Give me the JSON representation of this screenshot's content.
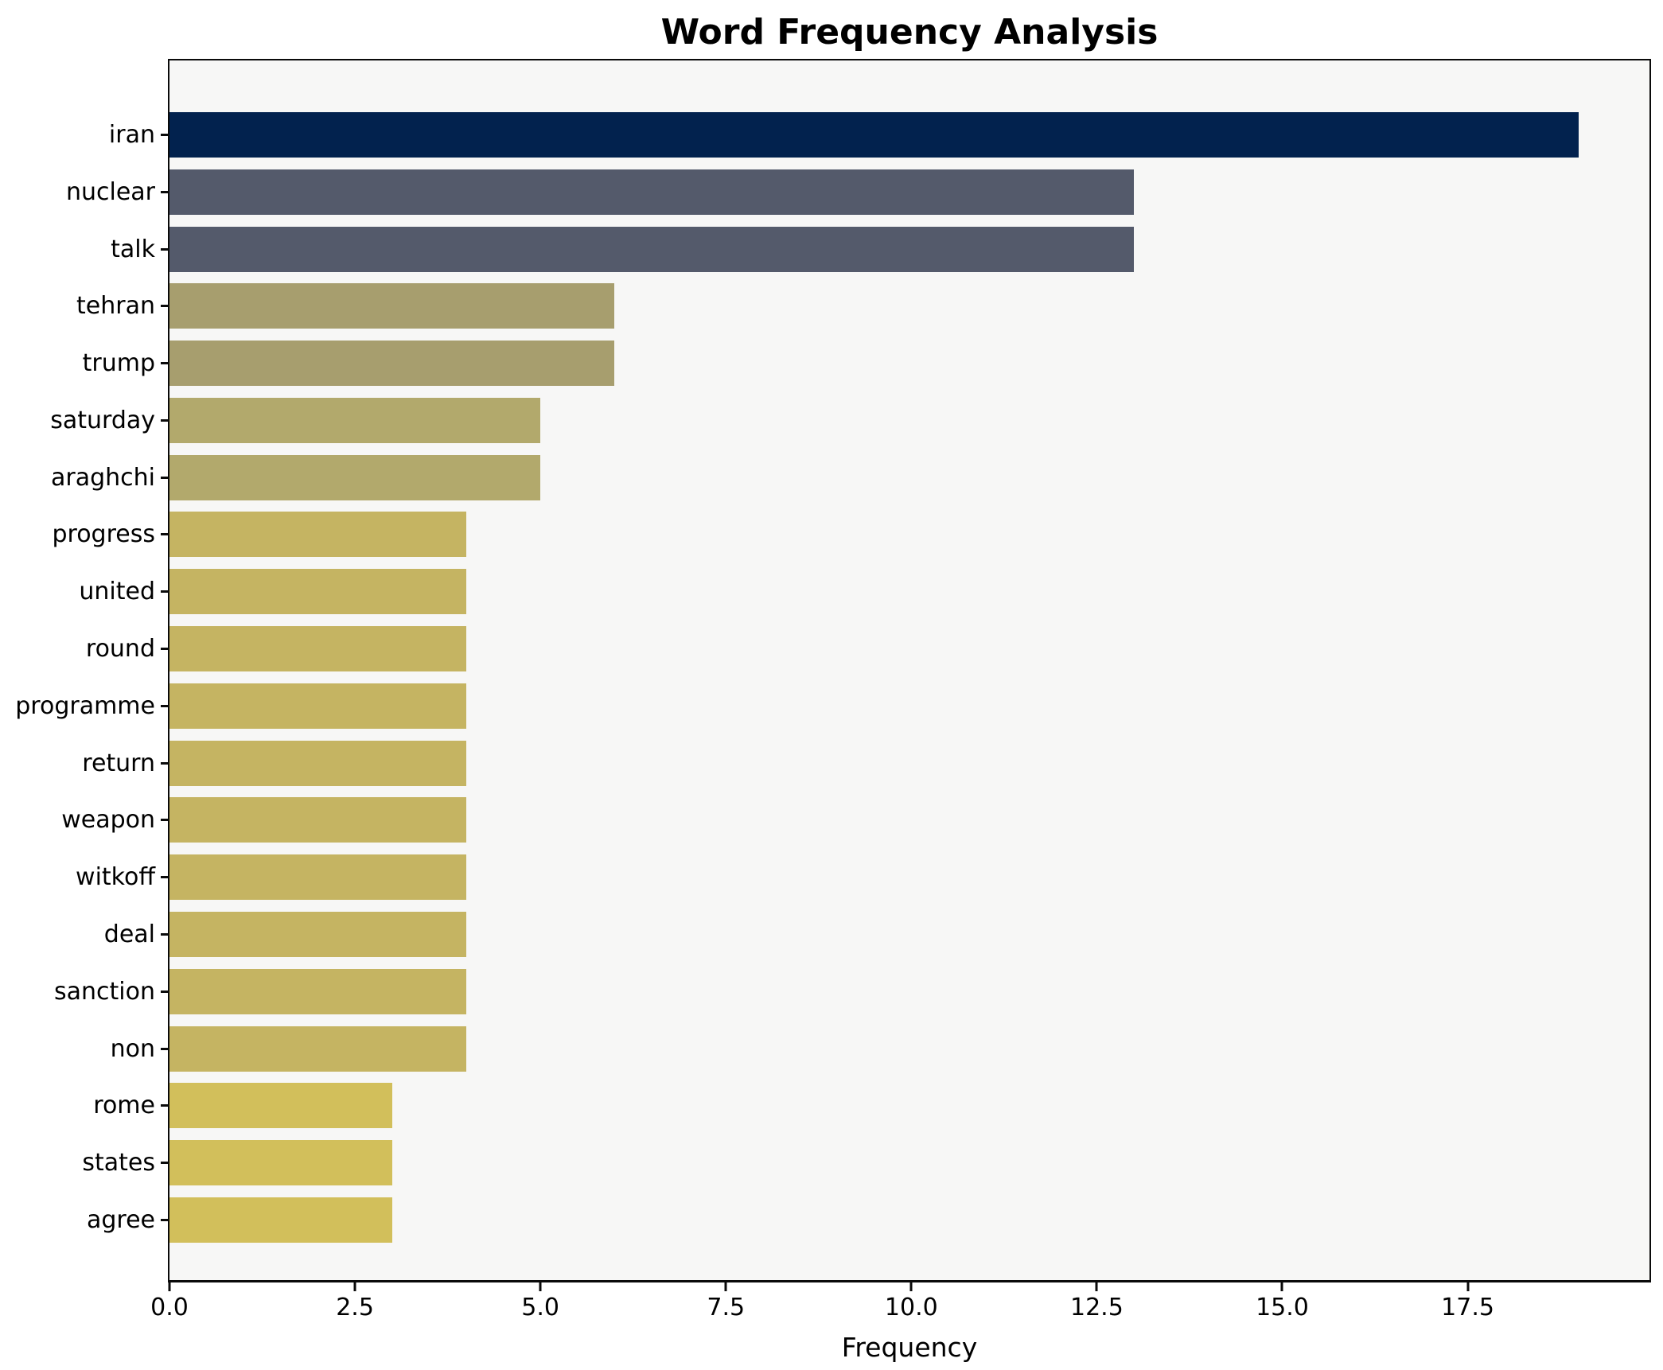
{
  "chart_data": {
    "type": "bar",
    "orientation": "horizontal",
    "title": "Word Frequency Analysis",
    "xlabel": "Frequency",
    "ylabel": "",
    "grid": false,
    "legend": false,
    "plot_background": "#f7f7f6",
    "spine_color": "#0a0a0a",
    "xlim": [
      0,
      19.95
    ],
    "xtick_labels": [
      "0.0",
      "2.5",
      "5.0",
      "7.5",
      "10.0",
      "12.5",
      "15.0",
      "17.5"
    ],
    "xtick_values": [
      0,
      2.5,
      5,
      7.5,
      10,
      12.5,
      15,
      17.5
    ],
    "categories": [
      "iran",
      "nuclear",
      "talk",
      "tehran",
      "trump",
      "saturday",
      "araghchi",
      "progress",
      "united",
      "round",
      "programme",
      "return",
      "weapon",
      "witkoff",
      "deal",
      "sanction",
      "non",
      "rome",
      "states",
      "agree"
    ],
    "values": [
      19,
      13,
      13,
      6,
      6,
      5,
      5,
      4,
      4,
      4,
      4,
      4,
      4,
      4,
      4,
      4,
      4,
      3,
      3,
      3
    ],
    "bar_colors": [
      "#02224e",
      "#545a6b",
      "#545a6b",
      "#a79e6e",
      "#a79e6e",
      "#b2a96c",
      "#b2a96c",
      "#c5b462",
      "#c5b462",
      "#c5b462",
      "#c5b462",
      "#c5b462",
      "#c5b462",
      "#c5b462",
      "#c5b462",
      "#c5b462",
      "#c5b462",
      "#d2bf5b",
      "#d2bf5b",
      "#d2bf5b"
    ]
  }
}
